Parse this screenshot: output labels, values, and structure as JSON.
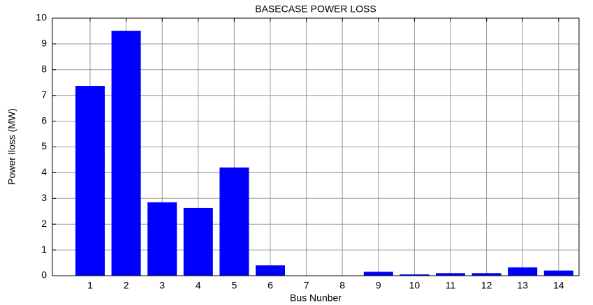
{
  "chart_data": {
    "type": "bar",
    "title": "BASECASE POWER LOSS",
    "x_label": "Bus Nunber",
    "y_label": "Power lloss (MW)",
    "categories": [
      "1",
      "2",
      "3",
      "4",
      "5",
      "6",
      "7",
      "8",
      "9",
      "10",
      "11",
      "12",
      "13",
      "14"
    ],
    "values": [
      7.37,
      9.51,
      2.85,
      2.63,
      4.2,
      0.4,
      0,
      0,
      0.15,
      0.05,
      0.1,
      0.1,
      0.32,
      0.2
    ],
    "color": "#0000ff",
    "ylim": [
      0,
      10
    ],
    "yticks": [
      0,
      1,
      2,
      3,
      4,
      5,
      6,
      7,
      8,
      9,
      10
    ],
    "grid": true
  }
}
